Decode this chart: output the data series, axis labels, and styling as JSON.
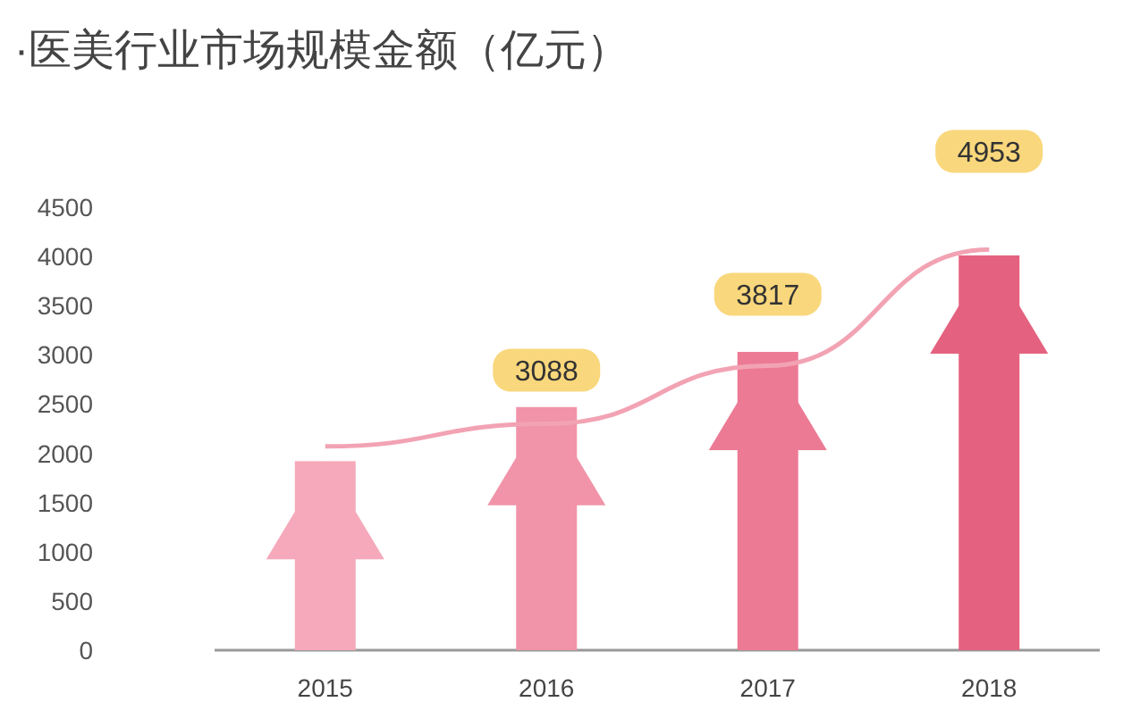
{
  "chart_data": {
    "type": "bar",
    "title": "·医美行业市场规模金额（亿元）",
    "categories": [
      "2015",
      "2016",
      "2017",
      "2018"
    ],
    "series": [
      {
        "colors": [
          "#f5a9ba",
          "#f193a9",
          "#ec7a94",
          "#e4627f"
        ],
        "values": [
          1920,
          2470,
          3030,
          4010
        ]
      },
      {
        "type": "line",
        "color": "#f2a3b3",
        "values": [
          2070,
          2300,
          2890,
          4070
        ]
      }
    ],
    "ylim": [
      0,
      4500
    ],
    "yticks": [
      0,
      500,
      1000,
      1500,
      2000,
      2500,
      3000,
      3500,
      4000,
      4500
    ],
    "grid": false,
    "annotations": [
      "3088",
      "3817",
      "4953"
    ]
  }
}
